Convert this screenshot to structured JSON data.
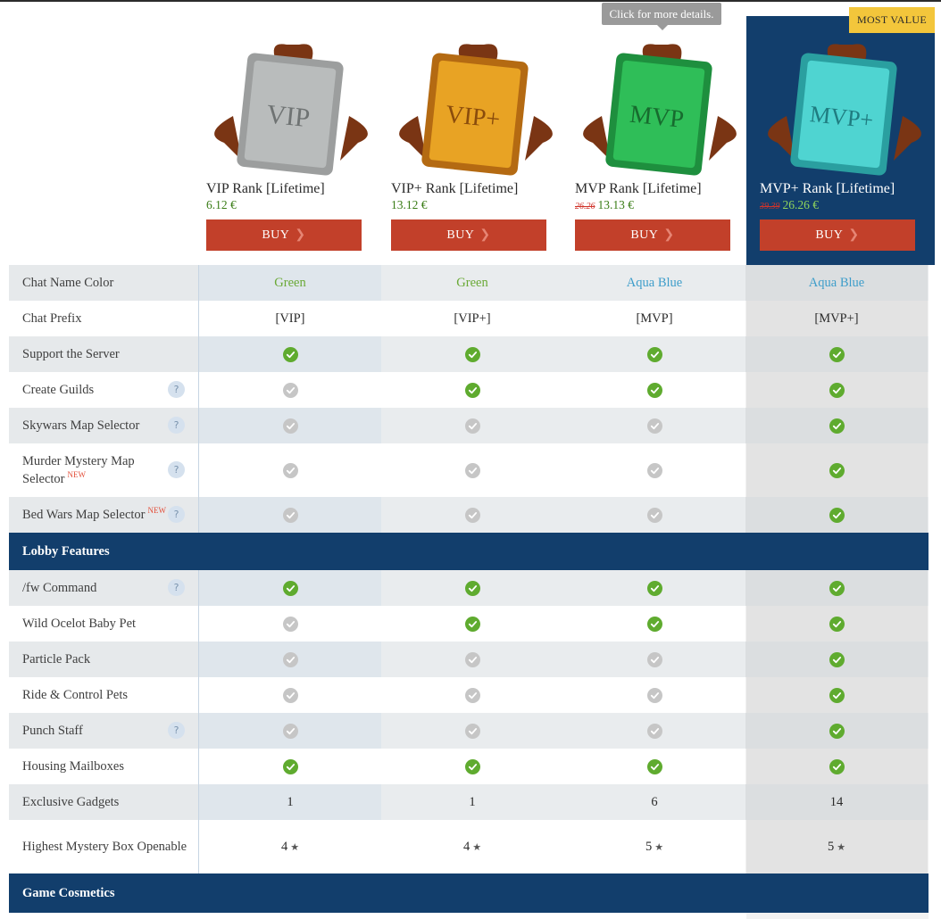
{
  "tooltip": "Click for more details.",
  "badge": "MOST VALUE",
  "products": [
    {
      "name": "VIP Rank [Lifetime]",
      "old_price": "",
      "price": "6.12 €",
      "buy": "BUY",
      "art_text": "VIP",
      "art_color": "#b9bcbc"
    },
    {
      "name": "VIP+ Rank [Lifetime]",
      "old_price": "",
      "price": "13.12 €",
      "buy": "BUY",
      "art_text": "VIP+",
      "art_color": "#e8a324"
    },
    {
      "name": "MVP Rank [Lifetime]",
      "old_price": "26.26",
      "price": "13.13 €",
      "buy": "BUY",
      "art_text": "MVP",
      "art_color": "#2fbe58"
    },
    {
      "name": "MVP+ Rank [Lifetime]",
      "old_price": "39.39",
      "price": "26.26 €",
      "buy": "BUY",
      "art_text": "MVP+",
      "art_color": "#4fd4d1"
    }
  ],
  "rows": [
    {
      "label": "Chat Name Color",
      "help": false,
      "new": false,
      "values": [
        "Green",
        "Green",
        "Aqua Blue",
        "Aqua Blue"
      ],
      "kinds": [
        "green",
        "green",
        "aqua",
        "aqua"
      ]
    },
    {
      "label": "Chat Prefix",
      "help": false,
      "new": false,
      "values": [
        "[VIP]",
        "[VIP+]",
        "[MVP]",
        "[MVP+]"
      ]
    },
    {
      "label": "Support the Server",
      "help": false,
      "new": false,
      "checks": [
        true,
        true,
        true,
        true
      ]
    },
    {
      "label": "Create Guilds",
      "help": true,
      "new": false,
      "checks": [
        false,
        true,
        true,
        true
      ]
    },
    {
      "label": "Skywars Map Selector",
      "help": true,
      "new": false,
      "checks": [
        false,
        false,
        false,
        true
      ]
    },
    {
      "label": "Murder Mystery Map Selector",
      "help": true,
      "new": true,
      "checks": [
        false,
        false,
        false,
        true
      ]
    },
    {
      "label": "Bed Wars Map Selector",
      "help": true,
      "new": true,
      "checks": [
        false,
        false,
        false,
        true
      ]
    }
  ],
  "section1": "Lobby Features",
  "lobby_rows": [
    {
      "label": "/fw Command",
      "help": true,
      "new": false,
      "checks": [
        true,
        true,
        true,
        true
      ]
    },
    {
      "label": "Wild Ocelot Baby Pet",
      "help": false,
      "new": false,
      "checks": [
        false,
        true,
        true,
        true
      ]
    },
    {
      "label": "Particle Pack",
      "help": false,
      "new": false,
      "checks": [
        false,
        false,
        false,
        true
      ]
    },
    {
      "label": "Ride & Control Pets",
      "help": false,
      "new": false,
      "checks": [
        false,
        false,
        false,
        true
      ]
    },
    {
      "label": "Punch Staff",
      "help": true,
      "new": false,
      "checks": [
        false,
        false,
        false,
        true
      ]
    },
    {
      "label": "Housing Mailboxes",
      "help": false,
      "new": false,
      "checks": [
        true,
        true,
        true,
        true
      ]
    },
    {
      "label": "Exclusive Gadgets",
      "help": false,
      "new": false,
      "values": [
        "1",
        "1",
        "6",
        "14"
      ]
    },
    {
      "label": "Highest Mystery Box Openable",
      "help": false,
      "new": false,
      "values": [
        "4",
        "4",
        "5",
        "5"
      ],
      "star": "★"
    }
  ],
  "section2": "Game Cosmetics",
  "new_tag": "NEW",
  "help_glyph": "?"
}
